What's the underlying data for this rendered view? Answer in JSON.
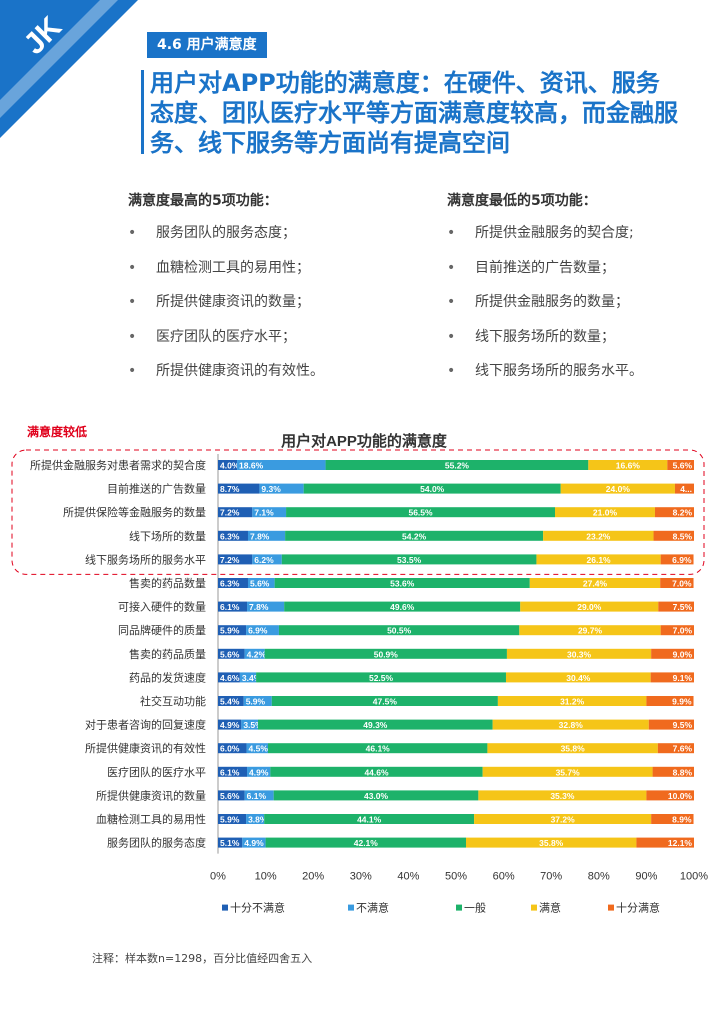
{
  "brand": {
    "logo_text": "JK",
    "corner_color": "#1a73c8"
  },
  "section": {
    "tag": "4.6 用户满意度"
  },
  "headline": "用户对APP功能的满意度：在硬件、资讯、服务态度、团队医疗水平等方面满意度较高，而金融服务、线下服务等方面尚有提高空间",
  "top5": {
    "title": "满意度最高的5项功能：",
    "items": [
      "服务团队的服务态度；",
      "血糖检测工具的易用性；",
      "所提供健康资讯的数量；",
      "医疗团队的医疗水平；",
      "所提供健康资讯的有效性。"
    ]
  },
  "bottom5": {
    "title": "满意度最低的5项功能：",
    "items": [
      "所提供金融服务的契合度;",
      "目前推送的广告数量；",
      "所提供金融服务的数量；",
      "线下服务场所的数量；",
      "线下服务场所的服务水平。"
    ]
  },
  "low_label": "满意度较低",
  "footnote": "注释：样本数n=1298，百分比值经四舍五入",
  "chart_data": {
    "type": "bar",
    "orientation": "horizontal",
    "stacked": "100%",
    "title": "用户对APP功能的满意度",
    "categories": [
      "所提供金融服务对患者需求的契合度",
      "目前推送的广告数量",
      "所提供保险等金融服务的数量",
      "线下场所的数量",
      "线下服务场所的服务水平",
      "售卖的药品数量",
      "可接入硬件的数量",
      "同品牌硬件的质量",
      "售卖的药品质量",
      "药品的发货速度",
      "社交互动功能",
      "对于患者咨询的回复速度",
      "所提供健康资讯的有效性",
      "医疗团队的医疗水平",
      "所提供健康资讯的数量",
      "血糖检测工具的易用性",
      "服务团队的服务态度"
    ],
    "series": [
      {
        "name": "十分不满意",
        "color": "#1f5fb4",
        "values": [
          4.0,
          8.7,
          7.2,
          6.3,
          7.2,
          6.3,
          6.1,
          5.9,
          5.6,
          4.6,
          5.4,
          4.9,
          6.0,
          6.1,
          5.6,
          5.9,
          5.1
        ]
      },
      {
        "name": "不满意",
        "color": "#3a9be0",
        "values": [
          18.6,
          9.3,
          7.1,
          7.8,
          6.2,
          5.6,
          7.8,
          6.9,
          4.2,
          3.4,
          5.9,
          3.5,
          4.5,
          4.9,
          6.1,
          3.8,
          4.9
        ]
      },
      {
        "name": "一般",
        "color": "#1db26a",
        "values": [
          55.2,
          54.0,
          56.5,
          54.2,
          53.5,
          53.6,
          49.6,
          50.5,
          50.9,
          52.5,
          47.5,
          49.3,
          46.1,
          44.6,
          43.0,
          44.1,
          42.1
        ]
      },
      {
        "name": "满意",
        "color": "#f5c518",
        "values": [
          16.6,
          24.0,
          21.0,
          23.2,
          26.1,
          27.4,
          29.0,
          29.7,
          30.3,
          30.4,
          31.2,
          32.8,
          35.8,
          35.7,
          35.3,
          37.2,
          35.8
        ]
      },
      {
        "name": "十分满意",
        "color": "#f06a1e",
        "values": [
          5.6,
          4.0,
          8.2,
          8.5,
          6.9,
          7.0,
          7.5,
          7.0,
          9.0,
          9.1,
          9.9,
          9.5,
          7.6,
          8.8,
          10.0,
          8.9,
          12.1
        ]
      }
    ],
    "value_labels": [
      [
        "4.0%",
        "18.6%",
        "55.2%",
        "16.6%",
        "5.6%"
      ],
      [
        "8.7%",
        "9.3%",
        "54.0%",
        "24.0%",
        "4..."
      ],
      [
        "7.2%",
        "7.1%",
        "56.5%",
        "21.0%",
        "8.2%"
      ],
      [
        "6.3%",
        "7.8%",
        "54.2%",
        "23.2%",
        "8.5%"
      ],
      [
        "7.2%",
        "6.2%",
        "53.5%",
        "26.1%",
        "6.9%"
      ],
      [
        "6.3%",
        "5.6%",
        "53.6%",
        "27.4%",
        "7.0%"
      ],
      [
        "6.1%",
        "7.8%",
        "49.6%",
        "29.0%",
        "7.5%"
      ],
      [
        "5.9%",
        "6.9%",
        "50.5%",
        "29.7%",
        "7.0%"
      ],
      [
        "5.6%",
        "4.2%",
        "50.9%",
        "30.3%",
        "9.0%"
      ],
      [
        "4.6%",
        "3.4%",
        "52.5%",
        "30.4%",
        "9.1%"
      ],
      [
        "5.4%",
        "5.9%",
        "47.5%",
        "31.2%",
        "9.9%"
      ],
      [
        "4.9%",
        "3.5%",
        "49.3%",
        "32.8%",
        "9.5%"
      ],
      [
        "6.0%",
        "4.5%",
        "46.1%",
        "35.8%",
        "7.6%"
      ],
      [
        "6.1%",
        "4.9%",
        "44.6%",
        "35.7%",
        "8.8%"
      ],
      [
        "5.6%",
        "6.1%",
        "43.0%",
        "35.3%",
        "10.0%"
      ],
      [
        "5.9%",
        "3.8%",
        "44.1%",
        "37.2%",
        "8.9%"
      ],
      [
        "5.1%",
        "4.9%",
        "42.1%",
        "35.8%",
        "12.1%"
      ]
    ],
    "x_ticks": [
      "0%",
      "10%",
      "20%",
      "30%",
      "40%",
      "50%",
      "60%",
      "70%",
      "80%",
      "90%",
      "100%"
    ],
    "xlim": [
      0,
      100
    ],
    "highlighted_rows": [
      0,
      1,
      2,
      3,
      4
    ],
    "legend_position": "bottom"
  }
}
